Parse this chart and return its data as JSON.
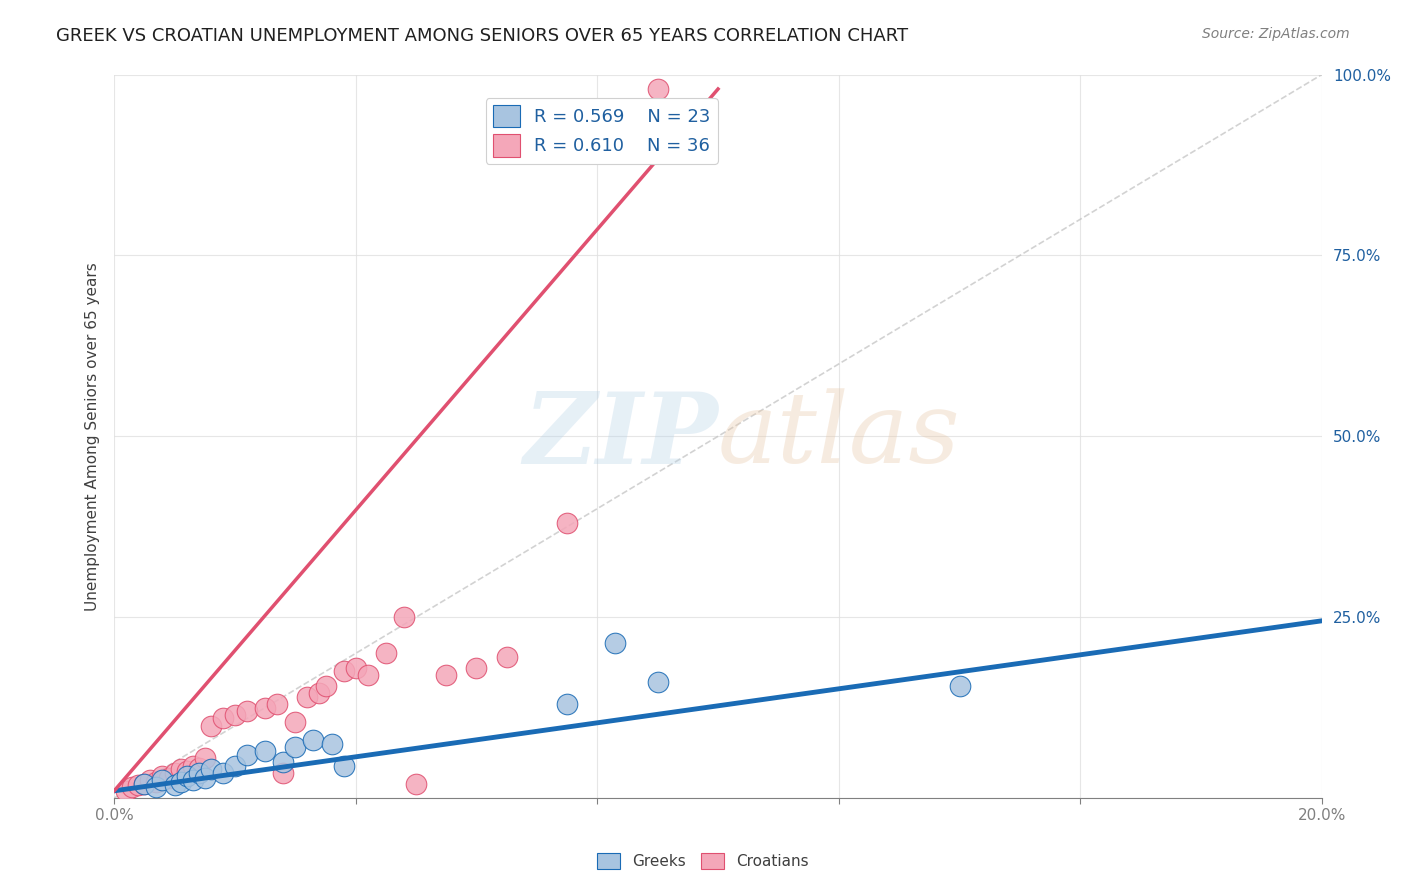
{
  "title": "GREEK VS CROATIAN UNEMPLOYMENT AMONG SENIORS OVER 65 YEARS CORRELATION CHART",
  "source": "Source: ZipAtlas.com",
  "ylabel": "Unemployment Among Seniors over 65 years",
  "xlim": [
    0.0,
    0.2
  ],
  "ylim": [
    0.0,
    1.0
  ],
  "xticks": [
    0.0,
    0.04,
    0.08,
    0.12,
    0.16,
    0.2
  ],
  "xticklabels": [
    "0.0%",
    "",
    "",
    "",
    "",
    "20.0%"
  ],
  "ytick_positions": [
    0.0,
    0.25,
    0.5,
    0.75,
    1.0
  ],
  "ytick_labels": [
    "",
    "25.0%",
    "50.0%",
    "75.0%",
    "100.0%"
  ],
  "greek_color": "#a8c4e0",
  "croatian_color": "#f4a7b9",
  "greek_line_color": "#1a6bb5",
  "croatian_line_color": "#e05070",
  "ref_line_color": "#c0c0c0",
  "legend_R_greek": "R = 0.569",
  "legend_N_greek": "N = 23",
  "legend_R_croatian": "R = 0.610",
  "legend_N_croatian": "N = 36",
  "greek_scatter_x": [
    0.005,
    0.007,
    0.008,
    0.01,
    0.011,
    0.012,
    0.013,
    0.014,
    0.015,
    0.016,
    0.018,
    0.02,
    0.022,
    0.025,
    0.028,
    0.03,
    0.033,
    0.036,
    0.038,
    0.075,
    0.083,
    0.09,
    0.14
  ],
  "greek_scatter_y": [
    0.02,
    0.015,
    0.025,
    0.018,
    0.022,
    0.03,
    0.025,
    0.035,
    0.028,
    0.04,
    0.035,
    0.045,
    0.06,
    0.065,
    0.05,
    0.07,
    0.08,
    0.075,
    0.045,
    0.13,
    0.215,
    0.16,
    0.155
  ],
  "croatian_scatter_x": [
    0.002,
    0.003,
    0.004,
    0.005,
    0.006,
    0.007,
    0.008,
    0.009,
    0.01,
    0.011,
    0.012,
    0.013,
    0.014,
    0.015,
    0.016,
    0.018,
    0.02,
    0.022,
    0.025,
    0.027,
    0.028,
    0.03,
    0.032,
    0.034,
    0.035,
    0.038,
    0.04,
    0.042,
    0.045,
    0.048,
    0.05,
    0.055,
    0.06,
    0.065,
    0.075,
    0.09
  ],
  "croatian_scatter_y": [
    0.01,
    0.015,
    0.018,
    0.02,
    0.025,
    0.022,
    0.03,
    0.028,
    0.035,
    0.04,
    0.038,
    0.045,
    0.042,
    0.055,
    0.1,
    0.11,
    0.115,
    0.12,
    0.125,
    0.13,
    0.035,
    0.105,
    0.14,
    0.145,
    0.155,
    0.175,
    0.18,
    0.17,
    0.2,
    0.25,
    0.02,
    0.17,
    0.18,
    0.195,
    0.38,
    0.98
  ],
  "greek_line_x": [
    0.0,
    0.2
  ],
  "greek_line_y": [
    0.01,
    0.245
  ],
  "croatian_line_x": [
    0.0,
    0.1
  ],
  "croatian_line_y": [
    0.01,
    0.98
  ],
  "ref_line_x": [
    0.0,
    0.2
  ],
  "ref_line_y": [
    0.0,
    1.0
  ],
  "background_color": "#ffffff",
  "grid_color": "#e0e0e0"
}
